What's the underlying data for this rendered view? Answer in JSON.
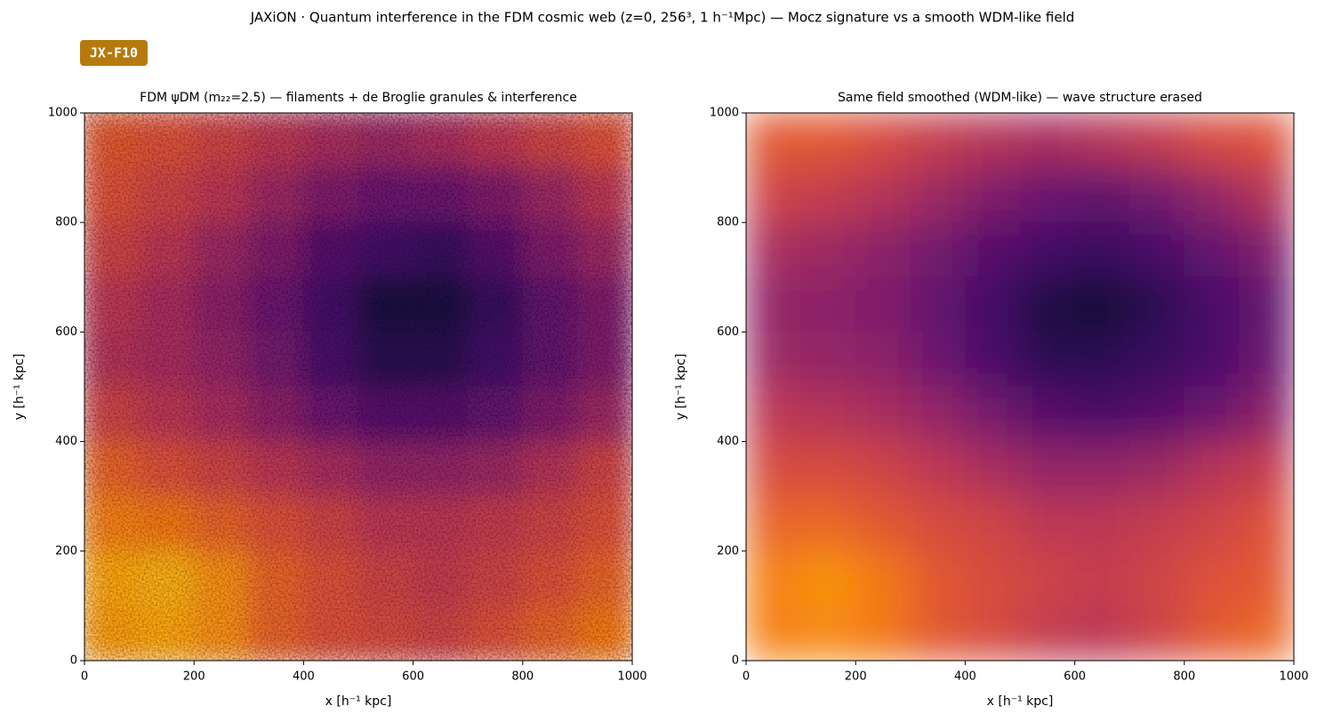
{
  "suptitle": "JAXiON · Quantum interference in the FDM cosmic web (z=0, 256³, 1 h⁻¹Mpc) — Mocz signature vs a smooth WDM-like field",
  "badge": "JX-F10",
  "chart_data": [
    {
      "type": "heatmap",
      "title": "FDM ψDM (m₂₂=2.5) — filaments + de Broglie granules & interference",
      "xlabel": "x [h⁻¹ kpc]",
      "ylabel": "y [h⁻¹ kpc]",
      "colormap": "inferno",
      "smooth": false,
      "xlim": [
        0,
        1000
      ],
      "ylim": [
        0,
        1000
      ],
      "xticks": [
        0,
        200,
        400,
        600,
        800,
        1000
      ],
      "yticks": [
        0,
        200,
        400,
        600,
        800,
        1000
      ],
      "x": [
        50,
        150,
        250,
        350,
        450,
        550,
        650,
        750,
        850,
        950
      ],
      "y": [
        950,
        850,
        750,
        650,
        550,
        450,
        350,
        250,
        150,
        50
      ],
      "z": [
        [
          0.62,
          0.6,
          0.55,
          0.5,
          0.45,
          0.42,
          0.45,
          0.5,
          0.55,
          0.6
        ],
        [
          0.6,
          0.55,
          0.5,
          0.42,
          0.35,
          0.3,
          0.3,
          0.35,
          0.42,
          0.5
        ],
        [
          0.55,
          0.5,
          0.42,
          0.35,
          0.25,
          0.2,
          0.18,
          0.25,
          0.35,
          0.42
        ],
        [
          0.5,
          0.45,
          0.38,
          0.3,
          0.2,
          0.12,
          0.12,
          0.18,
          0.28,
          0.35
        ],
        [
          0.48,
          0.45,
          0.4,
          0.32,
          0.22,
          0.15,
          0.15,
          0.2,
          0.28,
          0.35
        ],
        [
          0.55,
          0.5,
          0.45,
          0.38,
          0.3,
          0.25,
          0.25,
          0.28,
          0.35,
          0.42
        ],
        [
          0.65,
          0.6,
          0.55,
          0.5,
          0.45,
          0.4,
          0.4,
          0.42,
          0.48,
          0.55
        ],
        [
          0.72,
          0.7,
          0.65,
          0.6,
          0.55,
          0.5,
          0.5,
          0.52,
          0.55,
          0.6
        ],
        [
          0.8,
          0.82,
          0.75,
          0.65,
          0.6,
          0.55,
          0.52,
          0.55,
          0.6,
          0.65
        ],
        [
          0.78,
          0.8,
          0.75,
          0.65,
          0.6,
          0.58,
          0.55,
          0.6,
          0.65,
          0.7
        ]
      ]
    },
    {
      "type": "heatmap",
      "title": "Same field smoothed (WDM-like) — wave structure erased",
      "xlabel": "x [h⁻¹ kpc]",
      "ylabel": "y [h⁻¹ kpc]",
      "colormap": "inferno",
      "smooth": true,
      "xlim": [
        0,
        1000
      ],
      "ylim": [
        0,
        1000
      ],
      "xticks": [
        0,
        200,
        400,
        600,
        800,
        1000
      ],
      "yticks": [
        0,
        200,
        400,
        600,
        800,
        1000
      ],
      "x": [
        50,
        150,
        250,
        350,
        450,
        550,
        650,
        750,
        850,
        950
      ],
      "y": [
        950,
        850,
        750,
        650,
        550,
        450,
        350,
        250,
        150,
        50
      ],
      "z": [
        [
          0.62,
          0.62,
          0.58,
          0.52,
          0.48,
          0.45,
          0.48,
          0.52,
          0.58,
          0.6
        ],
        [
          0.55,
          0.52,
          0.48,
          0.42,
          0.35,
          0.3,
          0.28,
          0.32,
          0.4,
          0.48
        ],
        [
          0.45,
          0.42,
          0.38,
          0.32,
          0.25,
          0.2,
          0.18,
          0.22,
          0.28,
          0.35
        ],
        [
          0.4,
          0.38,
          0.35,
          0.28,
          0.2,
          0.12,
          0.1,
          0.15,
          0.22,
          0.28
        ],
        [
          0.42,
          0.4,
          0.38,
          0.3,
          0.22,
          0.15,
          0.15,
          0.18,
          0.22,
          0.3
        ],
        [
          0.5,
          0.48,
          0.45,
          0.4,
          0.32,
          0.25,
          0.22,
          0.25,
          0.3,
          0.38
        ],
        [
          0.58,
          0.58,
          0.55,
          0.5,
          0.45,
          0.4,
          0.4,
          0.42,
          0.48,
          0.52
        ],
        [
          0.65,
          0.66,
          0.62,
          0.58,
          0.55,
          0.5,
          0.5,
          0.52,
          0.55,
          0.6
        ],
        [
          0.72,
          0.76,
          0.7,
          0.62,
          0.58,
          0.55,
          0.52,
          0.55,
          0.6,
          0.62
        ],
        [
          0.72,
          0.74,
          0.7,
          0.62,
          0.58,
          0.52,
          0.5,
          0.55,
          0.62,
          0.66
        ]
      ]
    }
  ]
}
